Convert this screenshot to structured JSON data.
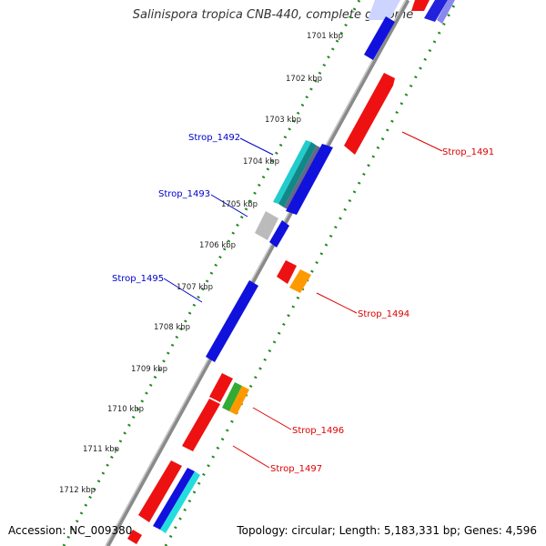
{
  "title": "Salinispora tropica CNB-440, complete genome",
  "footer": {
    "accession": "Accession: NC_009380",
    "summary": "Topology: circular; Length: 5,183,331 bp; Genes: 4,596"
  },
  "colors": {
    "backbone": "#888888",
    "ticks": "#1f8a1f",
    "forward_label": "#0000cc",
    "reverse_label": "#dd0000",
    "red": "#ee1111",
    "blue": "#1111dd",
    "orange": "#ff9900",
    "green": "#33aa33",
    "teal": "#22bbbb",
    "cyan": "#22dddd",
    "gray": "#bbbbbb"
  },
  "ruler": [
    {
      "label": "1701 kbp"
    },
    {
      "label": "1702 kbp"
    },
    {
      "label": "1703 kbp"
    },
    {
      "label": "1704 kbp"
    },
    {
      "label": "1705 kbp"
    },
    {
      "label": "1706 kbp"
    },
    {
      "label": "1707 kbp"
    },
    {
      "label": "1708 kbp"
    },
    {
      "label": "1709 kbp"
    },
    {
      "label": "1710 kbp"
    },
    {
      "label": "1711 kbp"
    },
    {
      "label": "1712 kbp"
    }
  ],
  "gene_labels": [
    {
      "text": "Strop_1492",
      "strand": "forward"
    },
    {
      "text": "Strop_1493",
      "strand": "forward"
    },
    {
      "text": "Strop_1495",
      "strand": "forward"
    },
    {
      "text": "Strop_1491",
      "strand": "reverse"
    },
    {
      "text": "Strop_1494",
      "strand": "reverse"
    },
    {
      "text": "Strop_1496",
      "strand": "reverse"
    },
    {
      "text": "Strop_1497",
      "strand": "reverse"
    }
  ]
}
